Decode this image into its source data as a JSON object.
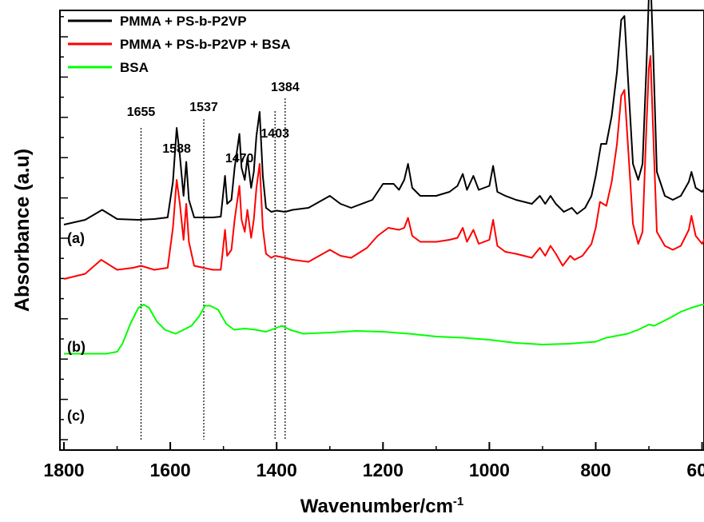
{
  "chart_data": {
    "type": "line",
    "title": "",
    "xlabel": "Wavenumber/cm",
    "xlabel_superscript": "-1",
    "ylabel": "Absorbance (a.u)",
    "xlim": [
      1800,
      570
    ],
    "x_reversed": true,
    "xticks": [
      "1800",
      "1600",
      "1400",
      "1200",
      "1000",
      "800",
      "600"
    ],
    "yticks_labeled": false,
    "legend": {
      "position": "top-left",
      "entries": [
        "PMMA + PS-b-P2VP",
        "PMMA + PS-b-P2VP + BSA",
        "BSA"
      ]
    },
    "annotations": [
      {
        "text": "1655",
        "x": 1655,
        "marker": "vertical-dotted-line"
      },
      {
        "text": "1537",
        "x": 1537,
        "marker": "vertical-dotted-line"
      },
      {
        "text": "1403",
        "x": 1403,
        "marker": "vertical-dotted-line"
      },
      {
        "text": "1384",
        "x": 1384,
        "marker": "vertical-dotted-line"
      },
      {
        "text": "1588",
        "x": 1588,
        "marker": "peak-label"
      },
      {
        "text": "1470",
        "x": 1470,
        "marker": "peak-label"
      }
    ],
    "trace_labels": [
      {
        "text": "(a)",
        "series": 0
      },
      {
        "text": "(b)",
        "series": 1
      },
      {
        "text": "(c)",
        "series": 2
      }
    ],
    "series": [
      {
        "name": "PMMA + PS-b-P2VP",
        "color": "#000000",
        "points": [
          [
            1800,
            0.68
          ],
          [
            1760,
            0.8
          ],
          [
            1728,
            1.05
          ],
          [
            1700,
            0.82
          ],
          [
            1660,
            0.8
          ],
          [
            1630,
            0.82
          ],
          [
            1605,
            0.86
          ],
          [
            1595,
            1.75
          ],
          [
            1588,
            3.1
          ],
          [
            1582,
            2.4
          ],
          [
            1575,
            1.4
          ],
          [
            1570,
            2.25
          ],
          [
            1565,
            1.3
          ],
          [
            1555,
            0.86
          ],
          [
            1520,
            0.86
          ],
          [
            1505,
            0.88
          ],
          [
            1497,
            1.9
          ],
          [
            1493,
            1.2
          ],
          [
            1485,
            1.3
          ],
          [
            1479,
            2.1
          ],
          [
            1470,
            2.95
          ],
          [
            1466,
            2.1
          ],
          [
            1460,
            1.8
          ],
          [
            1455,
            2.35
          ],
          [
            1448,
            1.6
          ],
          [
            1443,
            2.0
          ],
          [
            1438,
            2.9
          ],
          [
            1432,
            3.5
          ],
          [
            1426,
            1.9
          ],
          [
            1420,
            1.1
          ],
          [
            1410,
            1.0
          ],
          [
            1400,
            1.03
          ],
          [
            1384,
            1.0
          ],
          [
            1370,
            1.05
          ],
          [
            1340,
            1.1
          ],
          [
            1300,
            1.4
          ],
          [
            1280,
            1.2
          ],
          [
            1260,
            1.1
          ],
          [
            1220,
            1.3
          ],
          [
            1200,
            1.7
          ],
          [
            1180,
            1.7
          ],
          [
            1170,
            1.55
          ],
          [
            1160,
            1.8
          ],
          [
            1153,
            2.2
          ],
          [
            1145,
            1.6
          ],
          [
            1130,
            1.4
          ],
          [
            1100,
            1.4
          ],
          [
            1075,
            1.5
          ],
          [
            1060,
            1.65
          ],
          [
            1050,
            1.95
          ],
          [
            1042,
            1.55
          ],
          [
            1030,
            1.9
          ],
          [
            1020,
            1.55
          ],
          [
            1000,
            1.65
          ],
          [
            993,
            2.15
          ],
          [
            985,
            1.5
          ],
          [
            970,
            1.4
          ],
          [
            950,
            1.3
          ],
          [
            920,
            1.2
          ],
          [
            905,
            1.4
          ],
          [
            895,
            1.2
          ],
          [
            885,
            1.4
          ],
          [
            875,
            1.2
          ],
          [
            860,
            1.0
          ],
          [
            845,
            1.1
          ],
          [
            835,
            0.95
          ],
          [
            820,
            1.1
          ],
          [
            808,
            1.4
          ],
          [
            800,
            1.9
          ],
          [
            790,
            2.7
          ],
          [
            780,
            2.7
          ],
          [
            770,
            3.4
          ],
          [
            760,
            4.5
          ],
          [
            752,
            5.8
          ],
          [
            746,
            5.9
          ],
          [
            740,
            4.5
          ],
          [
            730,
            2.2
          ],
          [
            720,
            1.8
          ],
          [
            712,
            2.2
          ],
          [
            705,
            4.5
          ],
          [
            700,
            6.4
          ],
          [
            697,
            6.9
          ],
          [
            692,
            5.0
          ],
          [
            685,
            2.0
          ],
          [
            670,
            1.4
          ],
          [
            655,
            1.3
          ],
          [
            640,
            1.4
          ],
          [
            625,
            1.75
          ],
          [
            620,
            2.0
          ],
          [
            612,
            1.6
          ],
          [
            600,
            1.5
          ],
          [
            590,
            1.7
          ],
          [
            580,
            1.9
          ],
          [
            575,
            2.3
          ],
          [
            570,
            2.5
          ]
        ]
      },
      {
        "name": "PMMA + PS-b-P2VP + BSA",
        "color": "#ff0000",
        "points": [
          [
            1800,
            -0.68
          ],
          [
            1760,
            -0.55
          ],
          [
            1730,
            -0.2
          ],
          [
            1700,
            -0.45
          ],
          [
            1670,
            -0.4
          ],
          [
            1655,
            -0.35
          ],
          [
            1630,
            -0.45
          ],
          [
            1605,
            -0.4
          ],
          [
            1595,
            0.6
          ],
          [
            1588,
            1.8
          ],
          [
            1582,
            1.2
          ],
          [
            1575,
            0.3
          ],
          [
            1570,
            1.2
          ],
          [
            1565,
            0.25
          ],
          [
            1555,
            -0.35
          ],
          [
            1520,
            -0.45
          ],
          [
            1505,
            -0.45
          ],
          [
            1497,
            0.55
          ],
          [
            1493,
            -0.1
          ],
          [
            1485,
            0.05
          ],
          [
            1479,
            0.8
          ],
          [
            1470,
            1.65
          ],
          [
            1466,
            0.8
          ],
          [
            1460,
            0.5
          ],
          [
            1455,
            1.05
          ],
          [
            1448,
            0.35
          ],
          [
            1443,
            0.8
          ],
          [
            1438,
            1.6
          ],
          [
            1432,
            2.2
          ],
          [
            1426,
            0.6
          ],
          [
            1420,
            -0.05
          ],
          [
            1410,
            -0.15
          ],
          [
            1403,
            -0.1
          ],
          [
            1384,
            -0.15
          ],
          [
            1370,
            -0.2
          ],
          [
            1340,
            -0.25
          ],
          [
            1300,
            0.05
          ],
          [
            1280,
            -0.1
          ],
          [
            1260,
            -0.15
          ],
          [
            1230,
            0.1
          ],
          [
            1210,
            0.4
          ],
          [
            1190,
            0.6
          ],
          [
            1170,
            0.55
          ],
          [
            1160,
            0.6
          ],
          [
            1153,
            0.85
          ],
          [
            1145,
            0.4
          ],
          [
            1130,
            0.25
          ],
          [
            1100,
            0.25
          ],
          [
            1075,
            0.3
          ],
          [
            1060,
            0.35
          ],
          [
            1050,
            0.6
          ],
          [
            1042,
            0.25
          ],
          [
            1030,
            0.55
          ],
          [
            1020,
            0.2
          ],
          [
            1000,
            0.3
          ],
          [
            993,
            0.8
          ],
          [
            985,
            0.15
          ],
          [
            970,
            0.0
          ],
          [
            950,
            -0.05
          ],
          [
            920,
            -0.15
          ],
          [
            905,
            0.1
          ],
          [
            895,
            -0.1
          ],
          [
            885,
            0.15
          ],
          [
            875,
            -0.05
          ],
          [
            862,
            -0.35
          ],
          [
            848,
            -0.1
          ],
          [
            840,
            -0.2
          ],
          [
            825,
            -0.1
          ],
          [
            808,
            0.2
          ],
          [
            800,
            0.6
          ],
          [
            792,
            1.25
          ],
          [
            780,
            1.15
          ],
          [
            770,
            1.75
          ],
          [
            760,
            2.7
          ],
          [
            752,
            3.9
          ],
          [
            746,
            4.05
          ],
          [
            740,
            2.8
          ],
          [
            730,
            0.7
          ],
          [
            720,
            0.2
          ],
          [
            712,
            0.5
          ],
          [
            705,
            3.0
          ],
          [
            700,
            4.6
          ],
          [
            697,
            4.9
          ],
          [
            692,
            3.0
          ],
          [
            685,
            0.5
          ],
          [
            670,
            0.15
          ],
          [
            655,
            0.05
          ],
          [
            640,
            0.15
          ],
          [
            625,
            0.55
          ],
          [
            620,
            0.9
          ],
          [
            612,
            0.4
          ],
          [
            600,
            0.2
          ],
          [
            590,
            0.45
          ],
          [
            580,
            0.65
          ],
          [
            575,
            0.9
          ],
          [
            570,
            1.4
          ]
        ]
      },
      {
        "name": "BSA",
        "color": "#00ff00",
        "points": [
          [
            1800,
            -2.55
          ],
          [
            1720,
            -2.55
          ],
          [
            1700,
            -2.5
          ],
          [
            1690,
            -2.3
          ],
          [
            1675,
            -1.8
          ],
          [
            1660,
            -1.4
          ],
          [
            1650,
            -1.32
          ],
          [
            1640,
            -1.4
          ],
          [
            1625,
            -1.75
          ],
          [
            1610,
            -1.95
          ],
          [
            1590,
            -2.05
          ],
          [
            1560,
            -1.85
          ],
          [
            1545,
            -1.6
          ],
          [
            1535,
            -1.35
          ],
          [
            1525,
            -1.35
          ],
          [
            1510,
            -1.45
          ],
          [
            1495,
            -1.8
          ],
          [
            1480,
            -1.95
          ],
          [
            1460,
            -1.92
          ],
          [
            1440,
            -1.95
          ],
          [
            1420,
            -2.0
          ],
          [
            1400,
            -1.9
          ],
          [
            1390,
            -1.85
          ],
          [
            1375,
            -1.95
          ],
          [
            1350,
            -2.05
          ],
          [
            1300,
            -2.02
          ],
          [
            1250,
            -1.98
          ],
          [
            1200,
            -2.0
          ],
          [
            1150,
            -2.05
          ],
          [
            1100,
            -2.12
          ],
          [
            1050,
            -2.15
          ],
          [
            1000,
            -2.2
          ],
          [
            950,
            -2.28
          ],
          [
            900,
            -2.32
          ],
          [
            850,
            -2.3
          ],
          [
            800,
            -2.25
          ],
          [
            780,
            -2.15
          ],
          [
            740,
            -2.05
          ],
          [
            720,
            -1.95
          ],
          [
            700,
            -1.82
          ],
          [
            690,
            -1.85
          ],
          [
            660,
            -1.65
          ],
          [
            640,
            -1.5
          ],
          [
            620,
            -1.4
          ],
          [
            600,
            -1.32
          ],
          [
            580,
            -1.3
          ],
          [
            570,
            -1.28
          ]
        ]
      }
    ]
  }
}
